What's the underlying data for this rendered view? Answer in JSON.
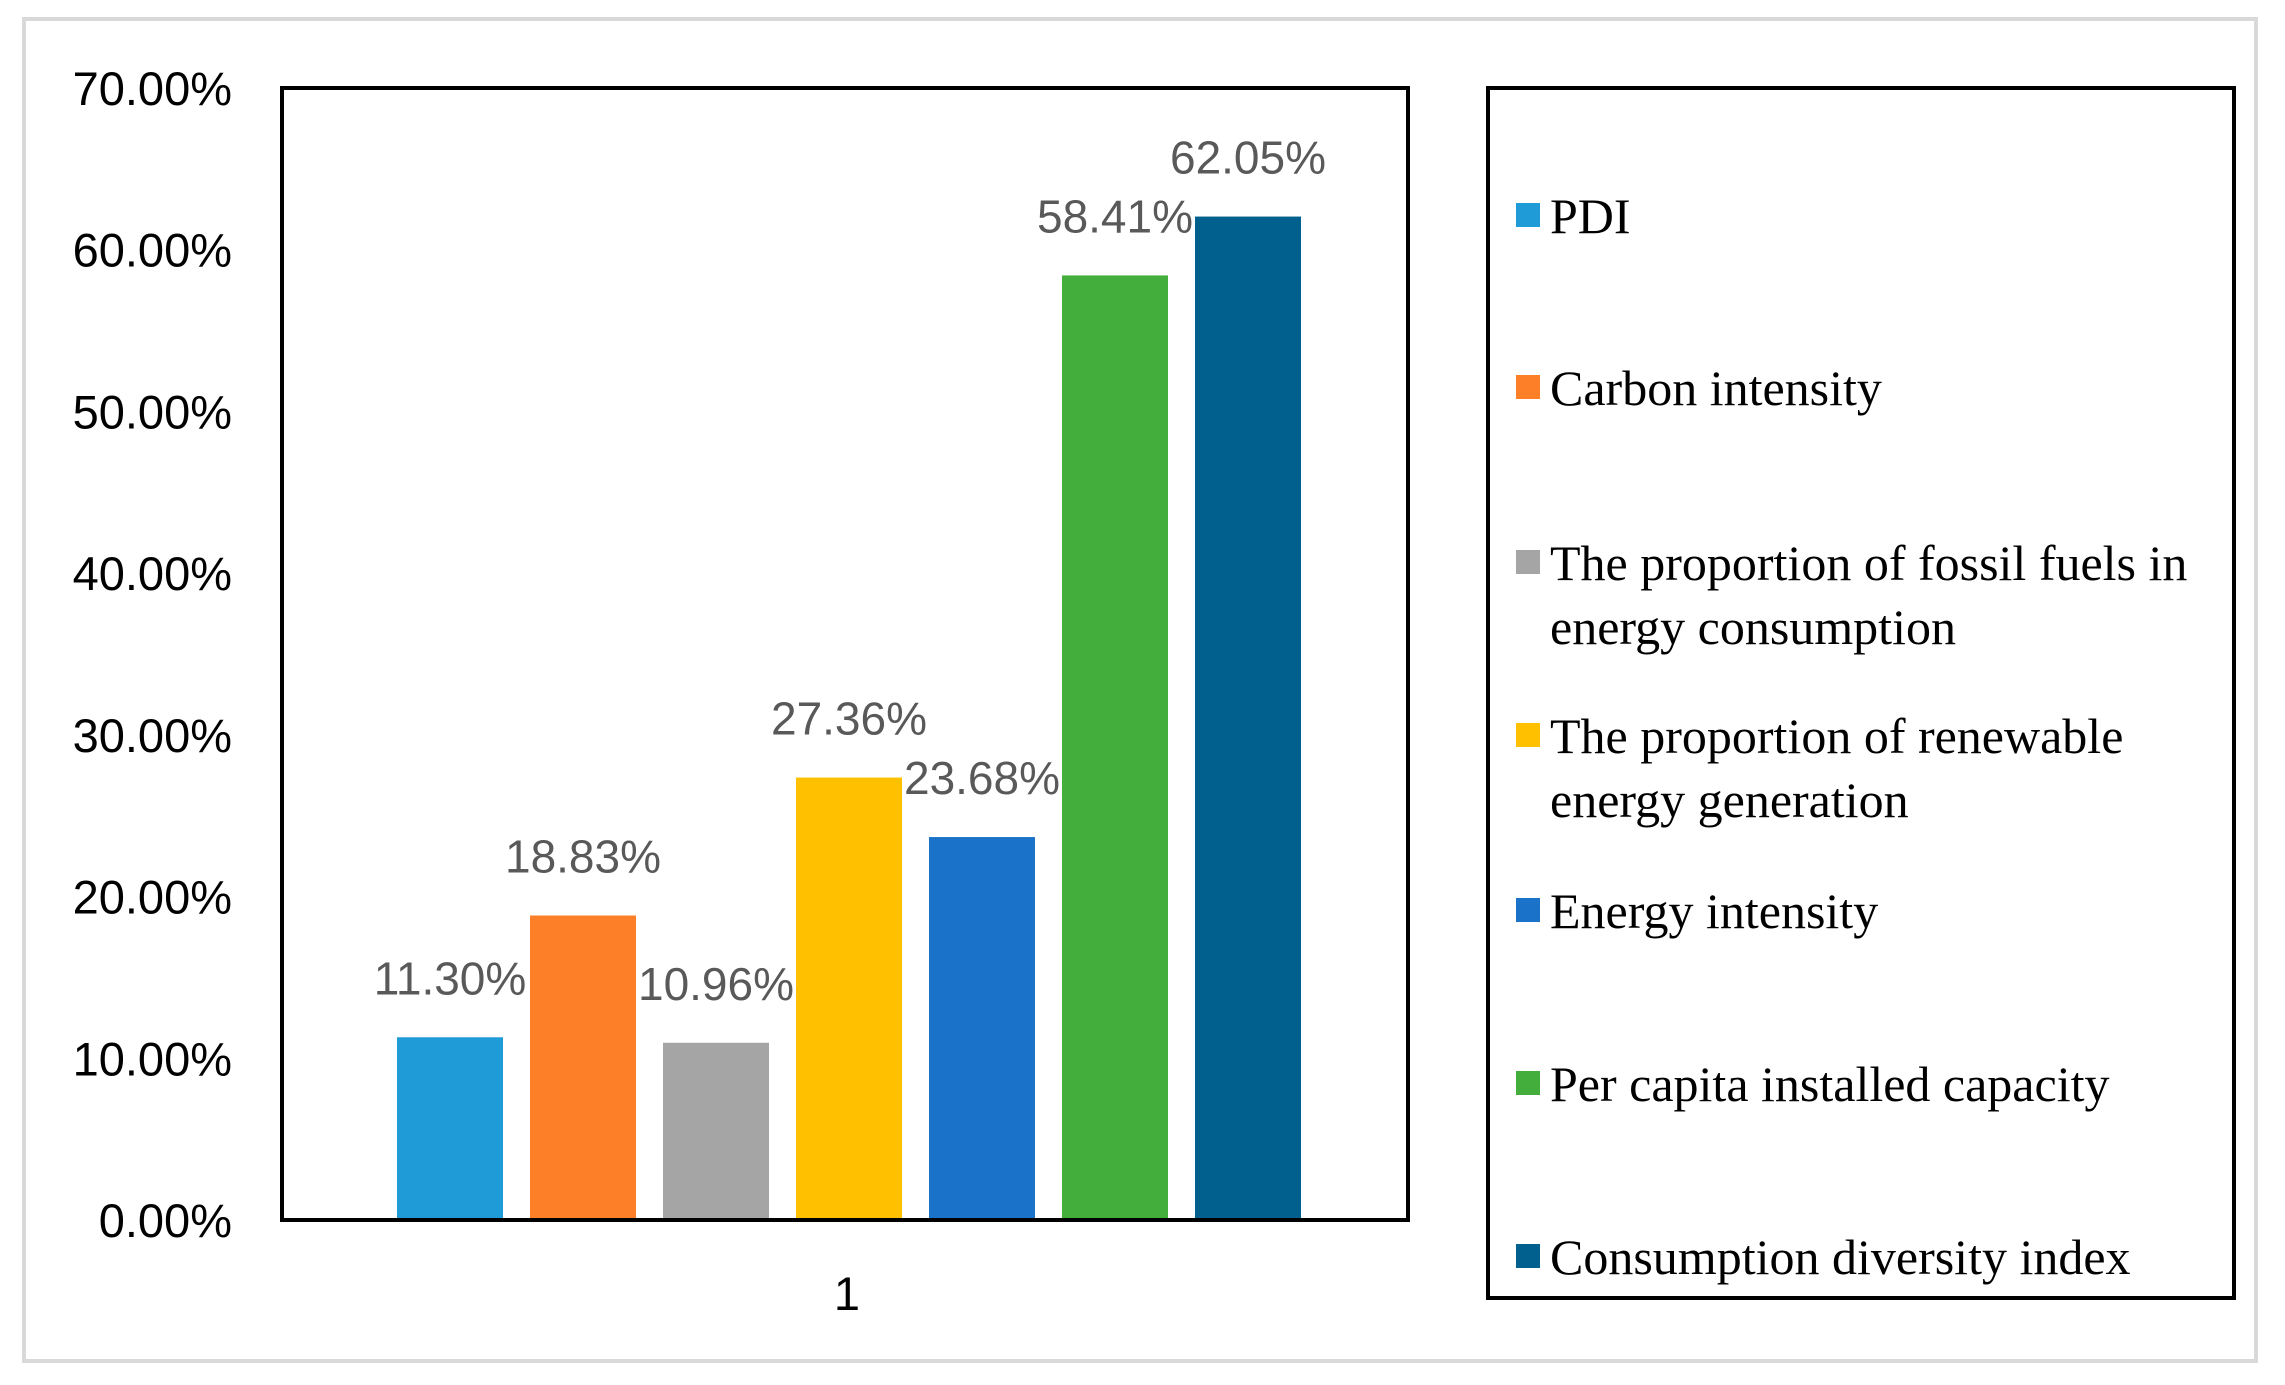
{
  "chart_data": {
    "type": "bar",
    "title": "",
    "xlabel": "",
    "ylabel": "",
    "categories": [
      "1"
    ],
    "ylim": [
      0,
      0.7
    ],
    "ytick_step": 0.1,
    "ytick_labels": [
      "0.00%",
      "10.00%",
      "20.00%",
      "30.00%",
      "40.00%",
      "50.00%",
      "60.00%",
      "70.00%"
    ],
    "grid": false,
    "legend_position": "right",
    "series": [
      {
        "name": "PDI",
        "values": [
          0.113
        ],
        "label": "11.30%",
        "color": "#1f9bd8"
      },
      {
        "name": "Carbon intensity",
        "values": [
          0.1883
        ],
        "label": "18.83%",
        "color": "#fd7f27"
      },
      {
        "name": "The proportion of fossil fuels in energy consumption",
        "values": [
          0.1096
        ],
        "label": "10.96%",
        "color": "#a5a5a5"
      },
      {
        "name": "The proportion of renewable energy generation",
        "values": [
          0.2736
        ],
        "label": "27.36%",
        "color": "#ffc000"
      },
      {
        "name": "Energy intensity",
        "values": [
          0.2368
        ],
        "label": "23.68%",
        "color": "#1a73c9"
      },
      {
        "name": "Per capita installed capacity",
        "values": [
          0.5841
        ],
        "label": "58.41%",
        "color": "#44ae3c"
      },
      {
        "name": "Consumption diversity index",
        "values": [
          0.6205
        ],
        "label": "62.05%",
        "color": "#02608f"
      }
    ]
  }
}
